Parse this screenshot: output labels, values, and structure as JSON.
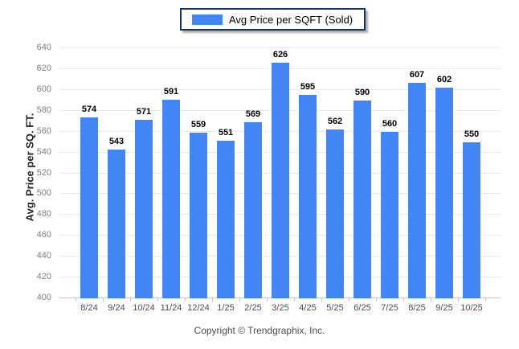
{
  "legend": {
    "label": "Avg Price per SQFT (Sold)",
    "swatch_color": "#4285f4"
  },
  "footer": {
    "copyright": "Copyright © Trendgraphix, Inc."
  },
  "colors": {
    "bar": "#4285f4",
    "legend_border": "#17365d",
    "gridline": "#e8e8e8",
    "axis_line": "#c6c6c6",
    "ytick_label": "#808080",
    "xtick_label": "#4d4d4d",
    "value_label": "#000000"
  },
  "chart_data": {
    "type": "bar",
    "title": "",
    "xlabel": "",
    "ylabel": "Avg. Price per SQ. FT.",
    "categories": [
      "8/24",
      "9/24",
      "10/24",
      "11/24",
      "12/24",
      "1/25",
      "2/25",
      "3/25",
      "4/25",
      "5/25",
      "6/25",
      "7/25",
      "8/25",
      "9/25",
      "10/25"
    ],
    "series": [
      {
        "name": "Avg Price per SQFT (Sold)",
        "values": [
          574,
          543,
          571,
          591,
          559,
          551,
          569,
          626,
          595,
          562,
          590,
          560,
          607,
          602,
          550
        ]
      }
    ],
    "ylim": [
      400,
      640
    ],
    "ytick_step": 20,
    "grid": true,
    "legend_position": "top",
    "value_labels": true
  }
}
